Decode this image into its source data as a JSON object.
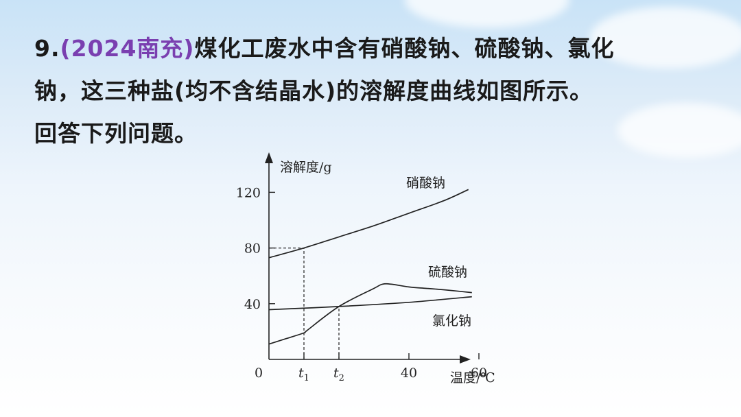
{
  "question": {
    "number": "9.",
    "source": "(2024南充)",
    "text_line1": "煤化工废水中含有硝酸钠、硫酸钠、氯化",
    "text_line2": "钠，这三种盐(均不含结晶水)的溶解度曲线如图所示。",
    "text_line3": "回答下列问题。"
  },
  "chart_data": {
    "type": "line",
    "xlabel": "温度/℃",
    "ylabel": "溶解度/g",
    "x_origin_label": "0",
    "x_ticks": [
      {
        "label": "t",
        "sub": "1",
        "value": 10
      },
      {
        "label": "t",
        "sub": "2",
        "value": 20
      },
      {
        "label": "40",
        "value": 40
      },
      {
        "label": "60",
        "value": 60
      }
    ],
    "y_ticks": [
      {
        "label": "40",
        "value": 40
      },
      {
        "label": "80",
        "value": 80
      },
      {
        "label": "120",
        "value": 120
      }
    ],
    "xlim": [
      0,
      58
    ],
    "ylim": [
      0,
      148
    ],
    "series": [
      {
        "name": "硝酸钠",
        "x": [
          0,
          10,
          20,
          30,
          40,
          50,
          57
        ],
        "y": [
          73,
          80,
          88,
          96,
          105,
          114,
          122
        ]
      },
      {
        "name": "硫酸钠",
        "x": [
          0,
          5,
          10,
          11,
          20,
          30,
          32.4,
          35,
          40,
          45,
          50,
          58
        ],
        "y": [
          11,
          15,
          19,
          21,
          38,
          51,
          54,
          54,
          52,
          51,
          50,
          48
        ]
      },
      {
        "name": "氯化钠",
        "x": [
          0,
          20,
          40,
          58
        ],
        "y": [
          35.7,
          38,
          41,
          45
        ]
      }
    ],
    "annotations": [
      {
        "type": "dashed-guide",
        "x": 10,
        "y": 80
      },
      {
        "type": "dashed-guide",
        "x": 20,
        "y": 38
      }
    ]
  }
}
